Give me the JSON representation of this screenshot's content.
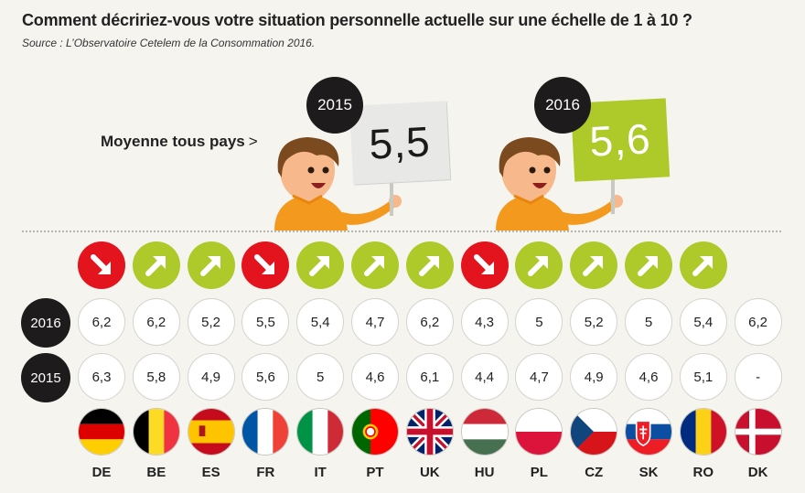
{
  "header": {
    "title": "Comment décririez-vous votre situation personnelle actuelle sur une échelle de 1 à 10 ?",
    "source": "Source : L’Observatoire Cetelem de la Consommation 2016."
  },
  "average": {
    "label": "Moyenne tous pays",
    "arrow": ">",
    "y2015_label": "2015",
    "y2015_value": "5,5",
    "y2016_label": "2016",
    "y2016_value": "5,6"
  },
  "row_labels": {
    "y2016": "2016",
    "y2015": "2015"
  },
  "colors": {
    "up": "#aec92a",
    "down": "#e3141e",
    "dark": "#1d1b1b",
    "background": "#f6f4ef"
  },
  "chart_data": {
    "type": "table",
    "title": "Comment décririez-vous votre situation personnelle actuelle sur une échelle de 1 à 10 ?",
    "categories": [
      "DE",
      "BE",
      "ES",
      "FR",
      "IT",
      "PT",
      "UK",
      "HU",
      "PL",
      "CZ",
      "SK",
      "RO",
      "DK"
    ],
    "series": [
      {
        "name": "2016",
        "values": [
          "6,2",
          "6,2",
          "5,2",
          "5,5",
          "5,4",
          "4,7",
          "6,2",
          "4,3",
          "5",
          "5,2",
          "5",
          "5,4",
          "6,2"
        ]
      },
      {
        "name": "2015",
        "values": [
          "6,3",
          "5,8",
          "4,9",
          "5,6",
          "5",
          "4,6",
          "6,1",
          "4,4",
          "4,7",
          "4,9",
          "4,6",
          "5,1",
          "-"
        ]
      }
    ],
    "trend": [
      "down",
      "up",
      "up",
      "down",
      "up",
      "up",
      "up",
      "down",
      "up",
      "up",
      "up",
      "up",
      ""
    ],
    "averages": {
      "2015": "5,5",
      "2016": "5,6"
    }
  }
}
